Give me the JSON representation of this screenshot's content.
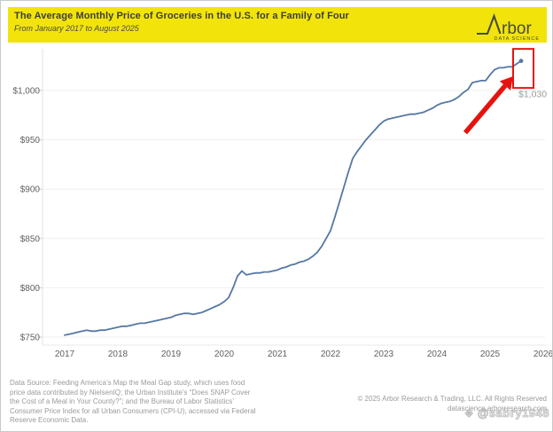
{
  "header": {
    "title": "The Average Monthly Price of Groceries in the U.S. for a Family of Four",
    "subtitle": "From January 2017 to August 2025",
    "logo": {
      "mark": "arbor-spike-mark",
      "text": "rbor",
      "tagline": "DATA SCIENCE"
    }
  },
  "chart_data": {
    "type": "line",
    "title": "The Average Monthly Price of Groceries in the U.S. for a Family of Four",
    "period": "January 2017 to August 2025",
    "xlabel": "",
    "ylabel": "",
    "grid": "horizontal",
    "legend": "none",
    "x_tick_labels": [
      "2017",
      "2018",
      "2019",
      "2020",
      "2021",
      "2022",
      "2023",
      "2024",
      "2025",
      "2026"
    ],
    "y_tick_labels": [
      "$750",
      "$800",
      "$850",
      "$900",
      "$950",
      "$1,000"
    ],
    "y_tick_values": [
      750,
      800,
      850,
      900,
      950,
      1000
    ],
    "ylim": [
      740,
      1045
    ],
    "series": [
      {
        "name": "Average monthly grocery price (family of four)",
        "color": "#5578a4",
        "start_month": "2017-01",
        "end_month": "2025-08",
        "monthly_values": [
          752,
          753,
          754,
          755,
          756,
          757,
          756,
          756,
          757,
          757,
          758,
          759,
          760,
          761,
          761,
          762,
          763,
          764,
          764,
          765,
          766,
          767,
          768,
          769,
          770,
          772,
          773,
          774,
          774,
          773,
          774,
          775,
          777,
          779,
          781,
          783,
          786,
          790,
          800,
          812,
          817,
          813,
          814,
          815,
          815,
          816,
          816,
          817,
          818,
          820,
          821,
          823,
          824,
          826,
          827,
          829,
          832,
          836,
          842,
          850,
          858,
          872,
          887,
          902,
          917,
          931,
          938,
          944,
          950,
          955,
          960,
          965,
          969,
          971,
          972,
          973,
          974,
          975,
          976,
          976,
          977,
          978,
          980,
          982,
          985,
          987,
          988,
          989,
          991,
          994,
          998,
          1001,
          1008,
          1009,
          1010,
          1010,
          1016,
          1021,
          1023,
          1023,
          1024,
          1024,
          1027,
          1030
        ]
      }
    ],
    "annotation": {
      "label": "$1,030",
      "pointed_value": 1030,
      "pointed_month": "2025-08",
      "marker": "red-box-and-arrow",
      "arrow_color": "#e5130f",
      "box_color": "#e5130f",
      "label_color": "#9b9b9b"
    }
  },
  "footer": {
    "source_lines": [
      "Data Source: Feeding America’s Map the Meal Gap study, which uses food",
      "price data contributed by NielsenIQ; the Urban Institute’s “Does SNAP Cover",
      "the Cost of a Meal in Your County?”; and the Bureau of Labor Statistics’",
      "Consumer Price Index for all Urban Consumers (CPI-U), accessed via Federal",
      "Reserve Economic Data."
    ],
    "copyright": "© 2025 Arbor Research & Trading, LLC. All Rights Reserved",
    "website": "datascience.arborresearch.com",
    "watermark": {
      "icon": "❖",
      "text": "@sabry1948"
    }
  },
  "colors": {
    "banner": "#f2e40b",
    "line": "#5578a4",
    "red": "#e5130f",
    "grid": "#f2efed",
    "axis_text": "#606060",
    "footer_text": "#9a9a9a"
  }
}
